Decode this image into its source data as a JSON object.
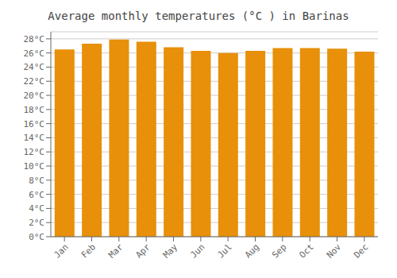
{
  "chart_data": {
    "type": "bar",
    "title": "Average monthly temperatures (°C ) in Barinas",
    "categories": [
      "Jan",
      "Feb",
      "Mar",
      "Apr",
      "May",
      "Jun",
      "Jul",
      "Aug",
      "Sep",
      "Oct",
      "Nov",
      "Dec"
    ],
    "values": [
      26.5,
      27.3,
      27.9,
      27.6,
      26.8,
      26.3,
      26.0,
      26.3,
      26.7,
      26.7,
      26.6,
      26.2
    ],
    "color": "#E8900A",
    "ylim": [
      0,
      29
    ],
    "yticks": [
      {
        "value": 0,
        "label": "0°C"
      },
      {
        "value": 2,
        "label": "2°C"
      },
      {
        "value": 4,
        "label": "4°C"
      },
      {
        "value": 6,
        "label": "6°C"
      },
      {
        "value": 8,
        "label": "8°C"
      },
      {
        "value": 10,
        "label": "10°C"
      },
      {
        "value": 12,
        "label": "12°C"
      },
      {
        "value": 14,
        "label": "14°C"
      },
      {
        "value": 16,
        "label": "16°C"
      },
      {
        "value": 18,
        "label": "18°C"
      },
      {
        "value": 20,
        "label": "20°C"
      },
      {
        "value": 22,
        "label": "22°C"
      },
      {
        "value": 24,
        "label": "24°C"
      },
      {
        "value": 26,
        "label": "26°C"
      },
      {
        "value": 28,
        "label": "28°C"
      }
    ],
    "grid": true
  }
}
